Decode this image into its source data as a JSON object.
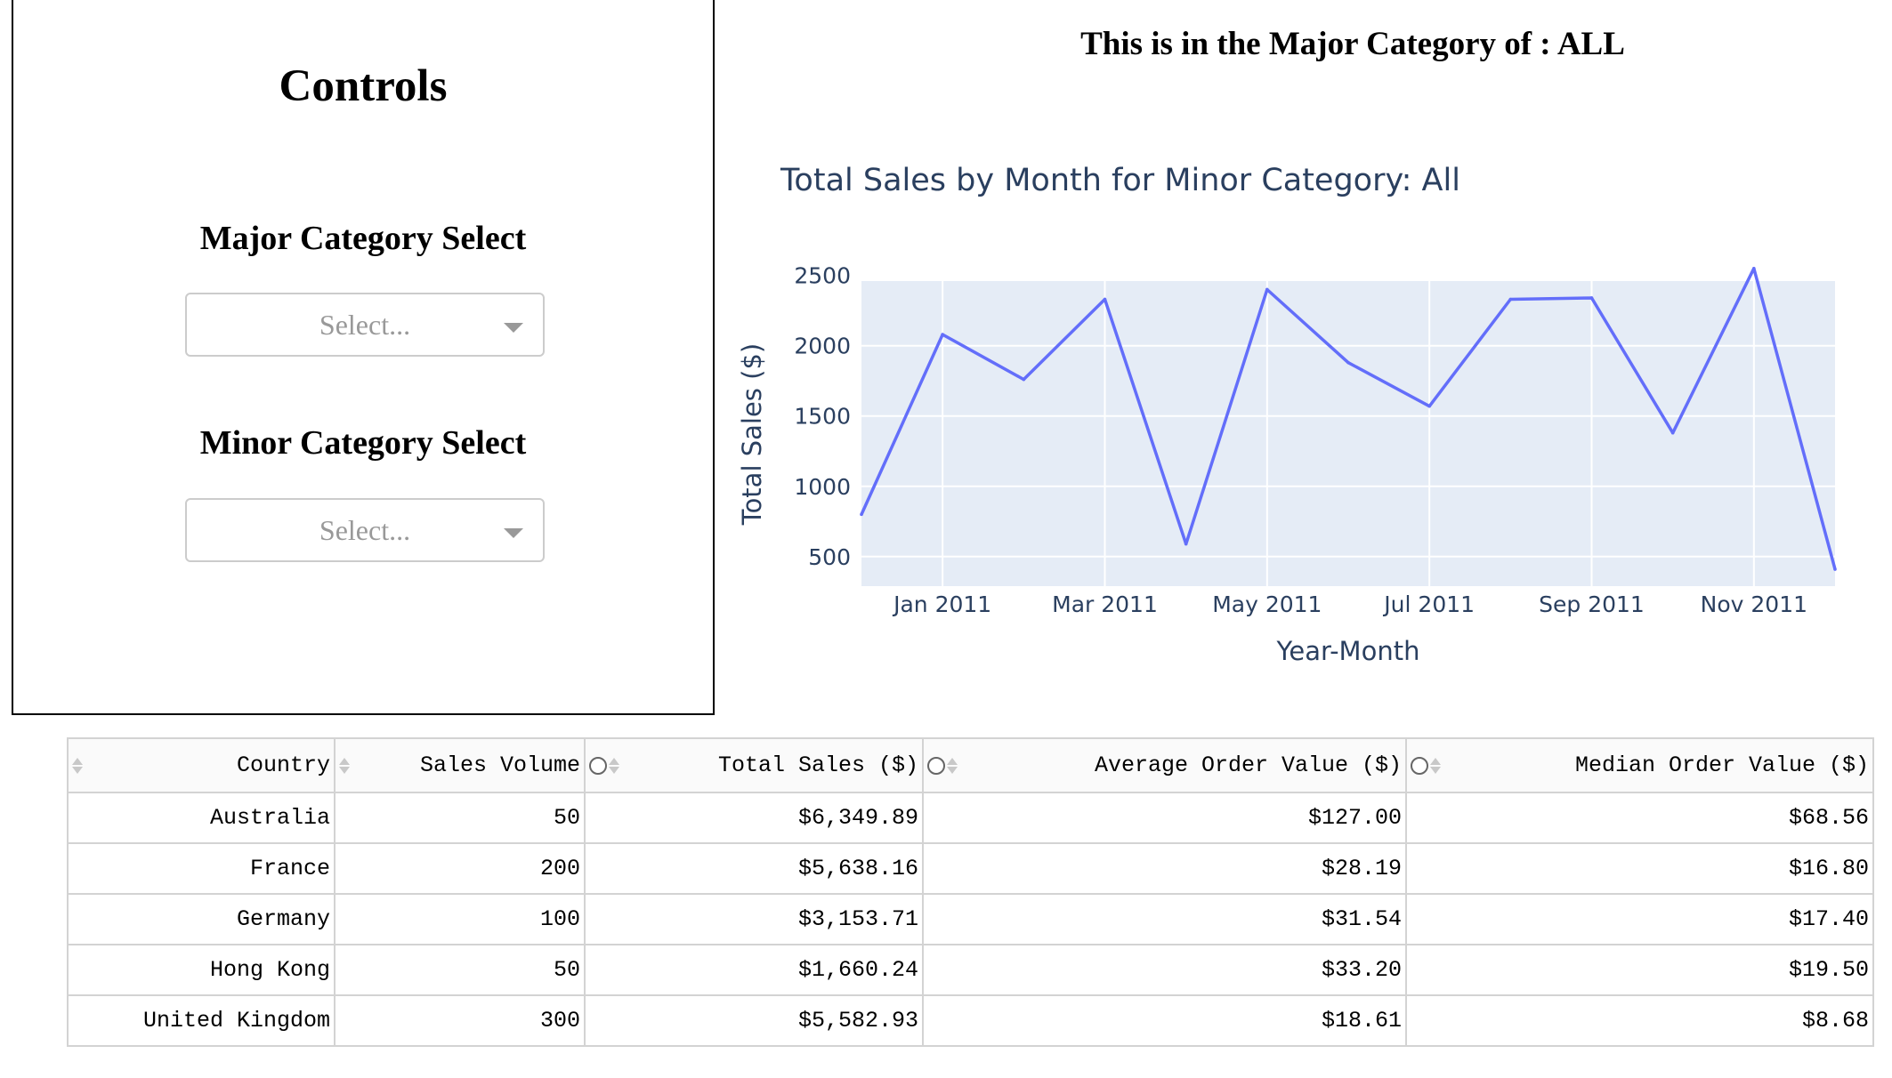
{
  "controls": {
    "title": "Controls",
    "major_label": "Major Category Select",
    "major_placeholder": "Select...",
    "minor_label": "Minor Category Select",
    "minor_placeholder": "Select..."
  },
  "heading": "This is in the Major Category of : ALL",
  "chart_data": {
    "type": "line",
    "title": "Total Sales by Month for Minor Category: All",
    "xlabel": "Year-Month",
    "ylabel": "Total Sales ($)",
    "x": [
      "2010-12",
      "2011-01",
      "2011-02",
      "2011-03",
      "2011-04",
      "2011-05",
      "2011-06",
      "2011-07",
      "2011-08",
      "2011-09",
      "2011-10",
      "2011-11",
      "2011-12"
    ],
    "series": [
      {
        "values": [
          800,
          2080,
          1760,
          2330,
          590,
          2400,
          1880,
          1570,
          2330,
          2340,
          1380,
          2550,
          410
        ]
      }
    ],
    "x_tick_labels": [
      "Jan 2011",
      "Mar 2011",
      "May 2011",
      "Jul 2011",
      "Sep 2011",
      "Nov 2011"
    ],
    "y_ticks": [
      500,
      1000,
      1500,
      2000,
      2500
    ],
    "ylim": [
      290,
      2460
    ],
    "grid": true,
    "line_color": "#636efa",
    "plot_bg": "#e5ecf6"
  },
  "table": {
    "columns": [
      "Country",
      "Sales Volume",
      "Total Sales ($)",
      "Average Order Value ($)",
      "Median Order Value ($)"
    ],
    "rows": [
      [
        "Australia",
        "50",
        "$6,349.89",
        "$127.00",
        "$68.56"
      ],
      [
        "France",
        "200",
        "$5,638.16",
        "$28.19",
        "$16.80"
      ],
      [
        "Germany",
        "100",
        "$3,153.71",
        "$31.54",
        "$17.40"
      ],
      [
        "Hong Kong",
        "50",
        "$1,660.24",
        "$33.20",
        "$19.50"
      ],
      [
        "United Kingdom",
        "300",
        "$5,582.93",
        "$18.61",
        "$8.68"
      ]
    ]
  }
}
